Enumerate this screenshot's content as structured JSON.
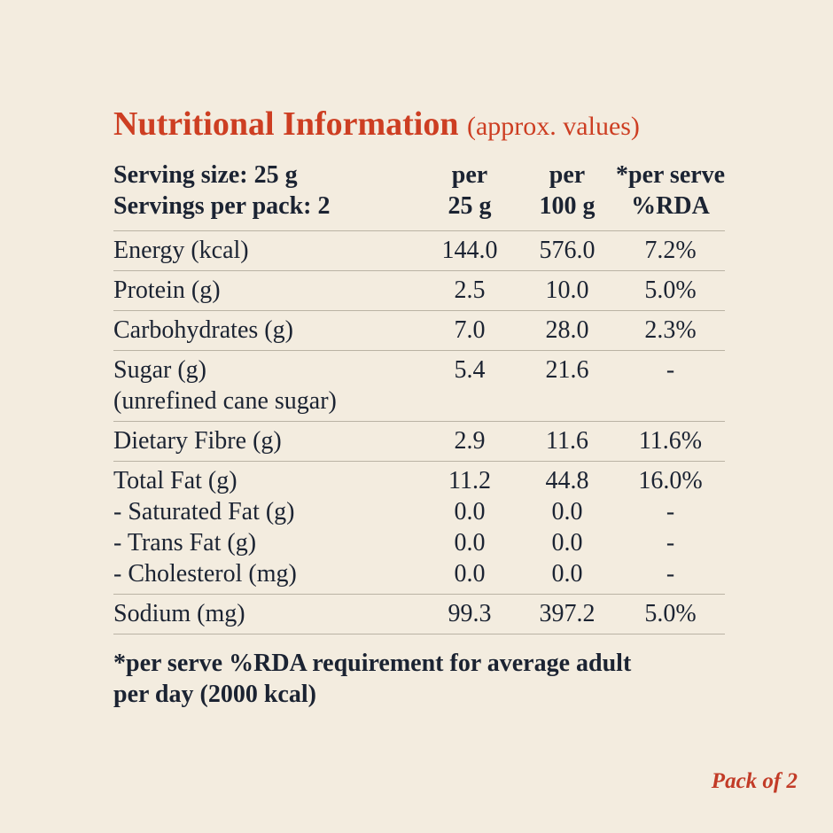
{
  "page": {
    "background_color": "#f3ecdf",
    "accent_red": "#cd3e22",
    "text_color": "#1b2332",
    "rule_color": "#bab3a4"
  },
  "title": {
    "main": "Nutritional Information",
    "suffix": "(approx. values)"
  },
  "table": {
    "header": {
      "left_line1": "Serving size: 25 g",
      "left_line2": "Servings per pack: 2",
      "col1_line1": "per",
      "col1_line2": "25 g",
      "col2_line1": "per",
      "col2_line2": "100 g",
      "col3_line1": "*per serve",
      "col3_line2": "%RDA"
    },
    "groups": [
      {
        "lines": [
          {
            "label": "Energy (kcal)",
            "per_25g": "144.0",
            "per_100g": "576.0",
            "rda": "7.2%"
          }
        ]
      },
      {
        "lines": [
          {
            "label": "Protein (g)",
            "per_25g": "2.5",
            "per_100g": "10.0",
            "rda": "5.0%"
          }
        ]
      },
      {
        "lines": [
          {
            "label": "Carbohydrates (g)",
            "per_25g": "7.0",
            "per_100g": "28.0",
            "rda": "2.3%"
          }
        ]
      },
      {
        "lines": [
          {
            "label": "Sugar (g)",
            "per_25g": "5.4",
            "per_100g": "21.6",
            "rda": "-"
          },
          {
            "label": "(unrefined cane sugar)",
            "per_25g": "",
            "per_100g": "",
            "rda": ""
          }
        ]
      },
      {
        "lines": [
          {
            "label": "Dietary Fibre (g)",
            "per_25g": "2.9",
            "per_100g": "11.6",
            "rda": "11.6%"
          }
        ]
      },
      {
        "lines": [
          {
            "label": "Total Fat (g)",
            "per_25g": "11.2",
            "per_100g": "44.8",
            "rda": "16.0%"
          },
          {
            "label": "- Saturated Fat (g)",
            "per_25g": "0.0",
            "per_100g": "0.0",
            "rda": "-"
          },
          {
            "label": "- Trans Fat (g)",
            "per_25g": "0.0",
            "per_100g": "0.0",
            "rda": "-"
          },
          {
            "label": "- Cholesterol (mg)",
            "per_25g": "0.0",
            "per_100g": "0.0",
            "rda": "-"
          }
        ]
      },
      {
        "lines": [
          {
            "label": "Sodium (mg)",
            "per_25g": "99.3",
            "per_100g": "397.2",
            "rda": "5.0%"
          }
        ]
      }
    ]
  },
  "footnote": {
    "line1": "*per serve %RDA requirement for average adult",
    "line2": "per day (2000 kcal)"
  },
  "pack_label": "Pack of 2"
}
